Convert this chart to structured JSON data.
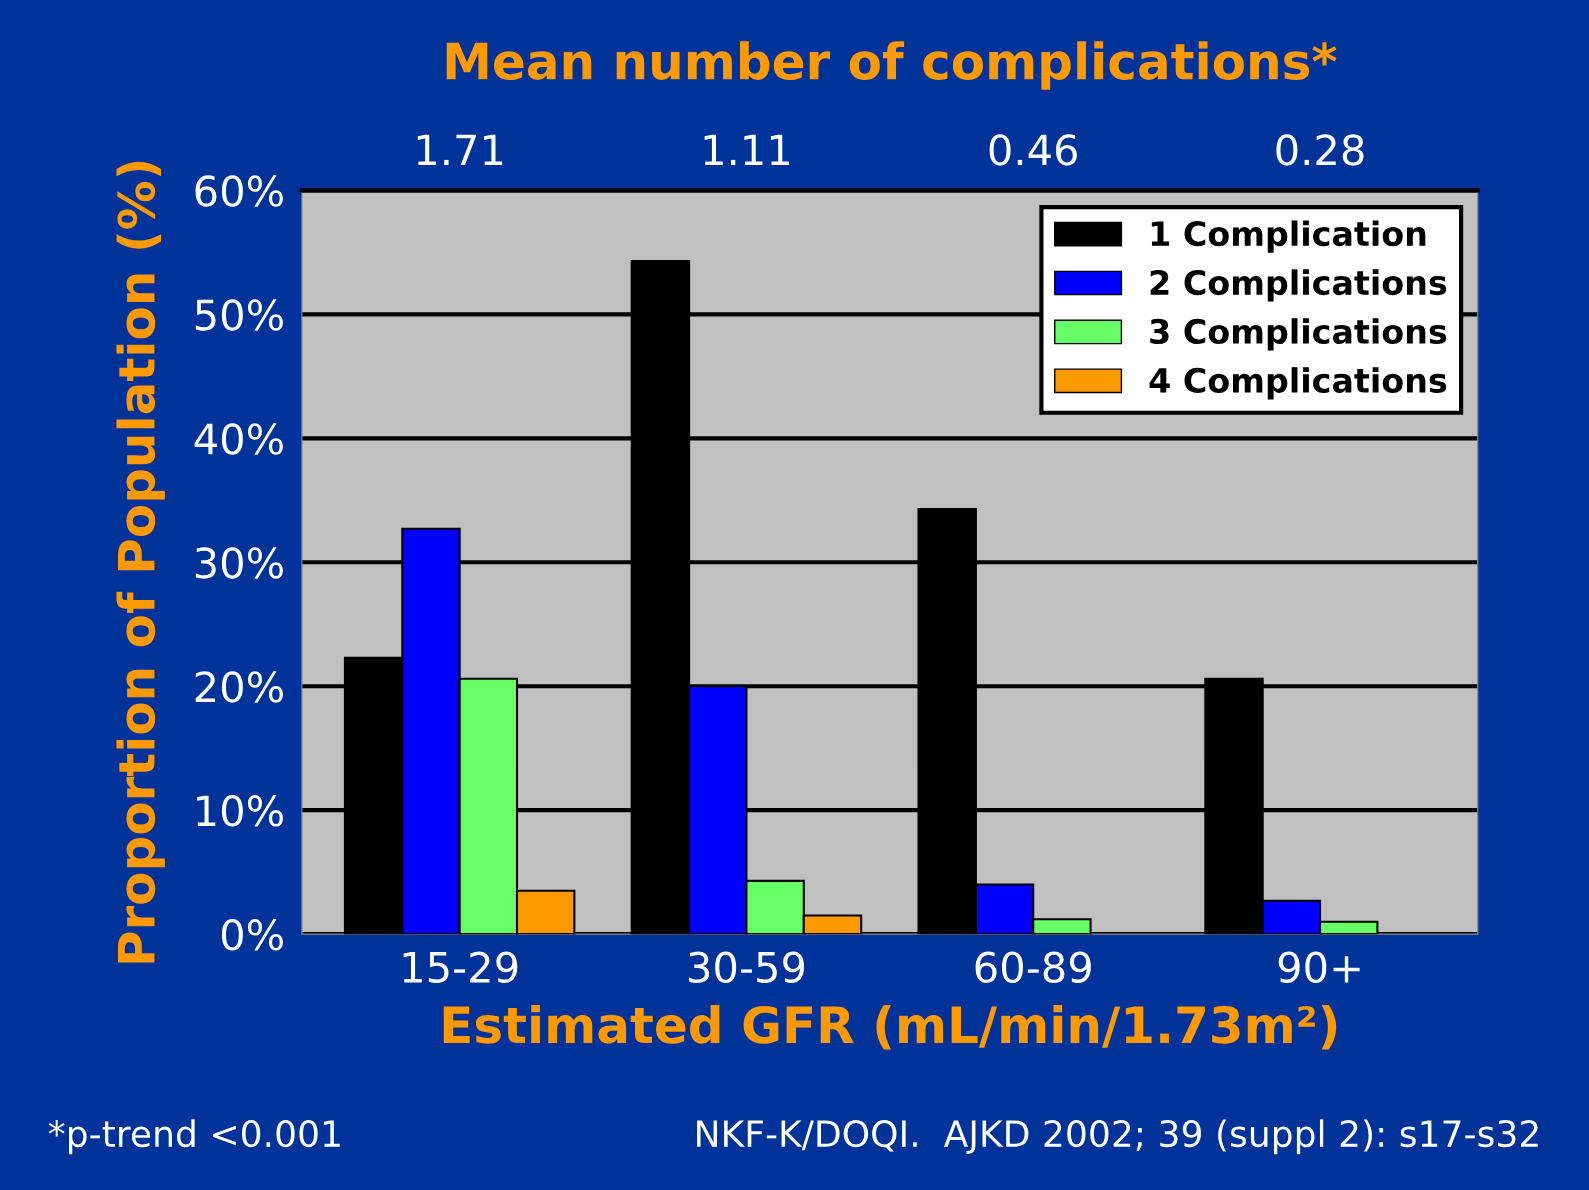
{
  "chart_data": {
    "type": "bar",
    "title": "Mean number of complications*",
    "xlabel": "Estimated GFR (mL/min/1.73m²)",
    "ylabel": "Proportion of Population (%)",
    "categories": [
      "15-29",
      "30-59",
      "60-89",
      "90+"
    ],
    "series": [
      {
        "name": "1 Complication",
        "color": "#000000",
        "values": [
          22.3,
          54.3,
          34.3,
          20.6
        ]
      },
      {
        "name": "2 Complications",
        "color": "#0000ff",
        "values": [
          32.7,
          20,
          4,
          2.7
        ]
      },
      {
        "name": "3 Complications",
        "color": "#66ff66",
        "values": [
          20.6,
          4.3,
          1.2,
          1
        ]
      },
      {
        "name": "4 Complications",
        "color": "#ff9900",
        "values": [
          3.5,
          1.5,
          null,
          null
        ]
      }
    ],
    "ylim": [
      0,
      60
    ],
    "yticks": [
      {
        "value": 0,
        "label": "0%"
      },
      {
        "value": 10,
        "label": "10%"
      },
      {
        "value": 20,
        "label": "20%"
      },
      {
        "value": 30,
        "label": "30%"
      },
      {
        "value": 40,
        "label": "40%"
      },
      {
        "value": 50,
        "label": "50%"
      },
      {
        "value": 60,
        "label": "60%"
      }
    ],
    "grid": "y",
    "legend": "top right",
    "annotations": [
      "1.71",
      "1.11",
      "0.46",
      "0.28",
      "*p-trend <0.001",
      "NKF-K/DOQI.  AJKD 2002; 39 (suppl 2): s17-s32"
    ]
  }
}
